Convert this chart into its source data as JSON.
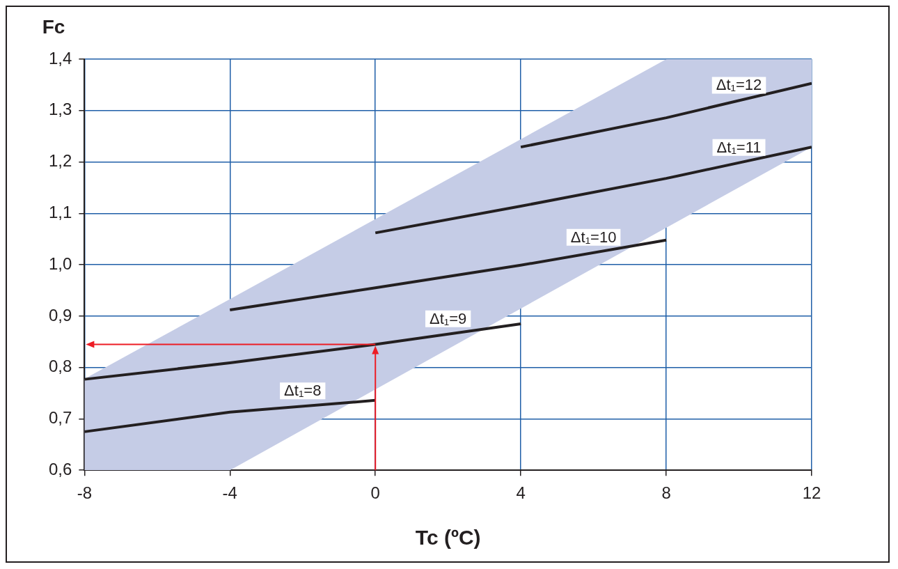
{
  "chart_data": {
    "type": "line",
    "xlabel": "Tc (ºC)",
    "ylabel": "Fc",
    "xlim": [
      -8,
      12
    ],
    "xticks": [
      -8,
      -4,
      0,
      4,
      8,
      12
    ],
    "ylim": [
      0.6,
      1.4
    ],
    "yticks": [
      {
        "value": 0.6,
        "label": "0,6"
      },
      {
        "value": 0.7,
        "label": "0,7"
      },
      {
        "value": 0.8,
        "label": "0,8"
      },
      {
        "value": 0.9,
        "label": "0,9"
      },
      {
        "value": 1.0,
        "label": "1,0"
      },
      {
        "value": 1.1,
        "label": "1,1"
      },
      {
        "value": 1.2,
        "label": "1,2"
      },
      {
        "value": 1.3,
        "label": "1,3"
      },
      {
        "value": 1.4,
        "label": "1,4"
      }
    ],
    "grid": true,
    "legend": false,
    "marker": "none",
    "line_style": "solid",
    "series": [
      {
        "type": "area",
        "color": "#c5cce6",
        "x": [
          -8,
          -4,
          8,
          12
        ],
        "values": [
          null,
          null,
          null,
          null
        ],
        "upper": [
          0.778,
          0.933,
          1.4,
          1.4
        ],
        "lower": [
          0.6,
          0.6,
          1.072,
          1.229
        ]
      },
      {
        "name": "Δt₁=8",
        "color": "#231f20",
        "x": [
          -8,
          -4,
          0
        ],
        "values": [
          0.675,
          0.713,
          0.736
        ]
      },
      {
        "name": "Δt₁=9",
        "color": "#231f20",
        "x": [
          -8,
          -4,
          0,
          4
        ],
        "values": [
          0.777,
          0.809,
          0.845,
          0.885
        ]
      },
      {
        "name": "Δt₁=10",
        "color": "#231f20",
        "x": [
          -4,
          0,
          4,
          8
        ],
        "values": [
          0.912,
          0.955,
          0.999,
          1.048
        ]
      },
      {
        "name": "Δt₁=11",
        "color": "#231f20",
        "x": [
          0,
          4,
          8,
          12
        ],
        "values": [
          1.062,
          1.114,
          1.168,
          1.229
        ]
      },
      {
        "name": "Δt₁=12",
        "color": "#231f20",
        "x": [
          4,
          8,
          12
        ],
        "values": [
          1.229,
          1.286,
          1.353
        ]
      }
    ]
  }
}
